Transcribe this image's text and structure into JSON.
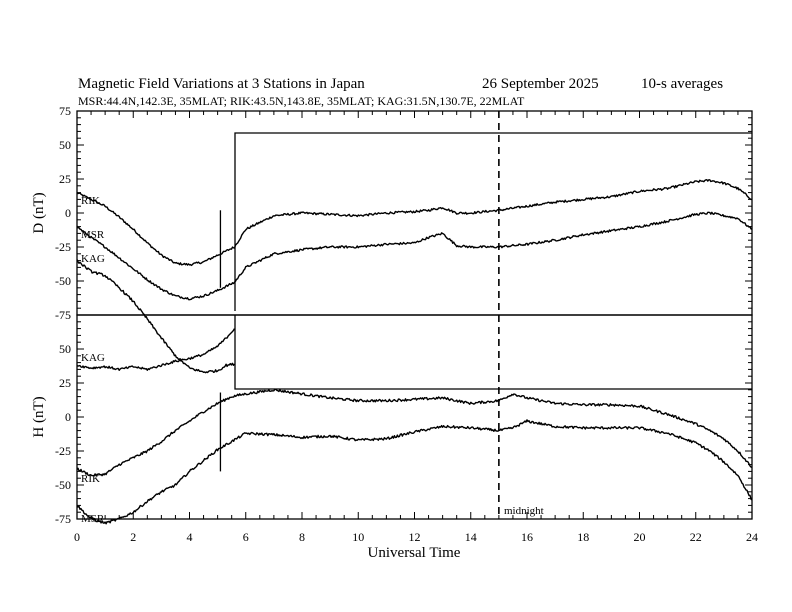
{
  "chart_data": {
    "type": "line",
    "title": "Magnetic Field Variations at 3 Stations in Japan",
    "date": "26 September 2025",
    "averaging": "10-s averages",
    "subtitle": "MSR:44.4N,142.3E, 35MLAT;  RIK:43.5N,143.8E, 35MLAT;  KAG:31.5N,130.7E, 22MLAT",
    "xlabel": "Universal Time",
    "xlim": [
      0,
      24
    ],
    "x_ticks": [
      "0",
      "2",
      "4",
      "6",
      "8",
      "10",
      "12",
      "14",
      "16",
      "18",
      "20",
      "22",
      "24"
    ],
    "annotation": "midnight",
    "midnight_ut": 15,
    "panels": [
      {
        "name": "D",
        "ylabel": "D (nT)",
        "ylim": [
          -75,
          75
        ],
        "y_ticks": [
          "75",
          "50",
          "25",
          "0",
          "-25",
          "-50",
          "-75"
        ],
        "gap_marker_ut": 5.1,
        "series": [
          {
            "name": "RIK",
            "x": [
              0,
              0.5,
              1,
              1.5,
              2,
              2.5,
              3,
              3.5,
              4,
              4.5,
              5,
              5.6,
              6,
              7,
              8,
              9,
              10,
              11,
              12,
              12.5,
              13,
              13.5,
              14,
              15,
              16,
              17,
              18,
              19,
              20,
              21,
              22,
              22.5,
              23,
              23.5,
              24
            ],
            "y": [
              15,
              10,
              5,
              -3,
              -12,
              -22,
              -31,
              -37,
              -38,
              -36,
              -31,
              -25,
              -12,
              -2,
              0,
              -1,
              -2,
              0,
              1,
              2,
              4,
              0,
              0,
              2,
              5,
              8,
              10,
              12,
              16,
              18,
              23,
              24,
              22,
              18,
              10
            ]
          },
          {
            "name": "MSR",
            "x": [
              0,
              0.5,
              1,
              1.5,
              2,
              2.5,
              3,
              3.5,
              4,
              4.5,
              5,
              5.6,
              6,
              7,
              8,
              9,
              10,
              11,
              12,
              12.5,
              13,
              13.5,
              14,
              15,
              16,
              17,
              18,
              19,
              20,
              21,
              22,
              22.5,
              23,
              23.5,
              24
            ],
            "y": [
              -10,
              -18,
              -25,
              -33,
              -41,
              -49,
              -56,
              -61,
              -63,
              -61,
              -57,
              -51,
              -40,
              -30,
              -27,
              -25,
              -25,
              -23,
              -22,
              -18,
              -15,
              -24,
              -25,
              -25,
              -23,
              -20,
              -16,
              -13,
              -10,
              -6,
              -1,
              0,
              -2,
              -4,
              -12
            ]
          }
        ]
      },
      {
        "name": "H",
        "ylabel": "H (nT)",
        "ylim": [
          -75,
          75
        ],
        "y_ticks": [
          "75",
          "50",
          "25",
          "0",
          "-25",
          "-50",
          "-75"
        ],
        "gap_marker_ut": 5.1,
        "series": [
          {
            "name": "RIK",
            "x": [
              0,
              0.5,
              1,
              1.5,
              2,
              2.5,
              3,
              3.5,
              4,
              4.5,
              5,
              5.5,
              6,
              7,
              8,
              9,
              10,
              11,
              12,
              13,
              14,
              15,
              15.5,
              16,
              17,
              18,
              19,
              20,
              21,
              22,
              22.5,
              23,
              23.5,
              24
            ],
            "y": [
              -38,
              -43,
              -42,
              -35,
              -30,
              -25,
              -18,
              -10,
              -3,
              4,
              10,
              15,
              17,
              20,
              17,
              14,
              12,
              12,
              13,
              14,
              10,
              12,
              17,
              14,
              10,
              9,
              9,
              8,
              2,
              -5,
              -10,
              -16,
              -25,
              -37
            ]
          },
          {
            "name": "MSR",
            "x": [
              0,
              0.5,
              1,
              1.5,
              2,
              2.5,
              3,
              3.5,
              4,
              4.5,
              5,
              5.5,
              6,
              7,
              8,
              9,
              10,
              11,
              12,
              13,
              14,
              15,
              15.5,
              16,
              17,
              18,
              19,
              20,
              21,
              22,
              22.5,
              23,
              23.5,
              24
            ],
            "y": [
              -65,
              -75,
              -78,
              -75,
              -70,
              -62,
              -55,
              -50,
              -40,
              -32,
              -24,
              -18,
              -12,
              -13,
              -15,
              -14,
              -17,
              -16,
              -11,
              -7,
              -8,
              -10,
              -8,
              -3,
              -7,
              -8,
              -8,
              -8,
              -12,
              -19,
              -25,
              -33,
              -43,
              -61
            ]
          }
        ]
      },
      {
        "name": "KAG",
        "series": [
          {
            "name": "KAG",
            "x": [
              0,
              0.5,
              1,
              1.5,
              2,
              2.5,
              3,
              3.5,
              4,
              4.5,
              5,
              5.3,
              5.6
            ],
            "y": [
              -35,
              -43,
              -46,
              -55,
              -65,
              -78,
              -92,
              -105,
              -114,
              -117,
              -116,
              -112,
              -111
            ]
          },
          {
            "name": "KAG",
            "x": [
              0,
              0.5,
              1,
              1.5,
              2,
              2.5,
              3,
              3.5,
              4,
              4.5,
              5,
              5.3,
              5.6
            ],
            "y": [
              38,
              36,
              37,
              35,
              37,
              35,
              38,
              41,
              43,
              46,
              52,
              58,
              65
            ]
          }
        ]
      }
    ]
  }
}
